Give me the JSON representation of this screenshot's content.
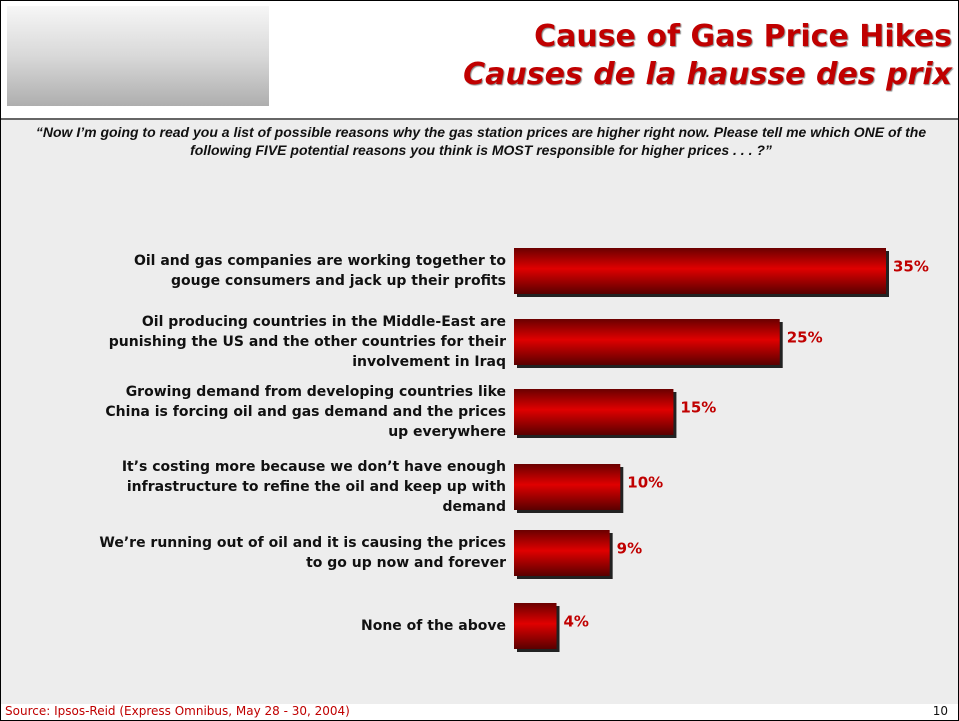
{
  "chart_data": {
    "type": "bar",
    "orientation": "horizontal",
    "title": "Cause of Gas Price Hikes",
    "subtitle": "Causes de la hausse des prix",
    "question": "“Now I’m going to read you a list of possible reasons why the gas station prices are higher right now. Please tell me which ONE of the following FIVE potential reasons you think is MOST responsible for higher prices . . . ?”",
    "categories": [
      "Oil and gas companies are working together to gouge consumers and jack up their profits",
      "Oil producing countries in the Middle-East are punishing the US and the other countries for their involvement in Iraq",
      "Growing demand from developing countries like China is forcing oil and gas demand and the prices up everywhere",
      "It’s costing more because we don’t have enough infrastructure to refine the oil and keep up with demand",
      "We’re running out of oil and it is causing the prices to go up now and forever",
      "None of the above"
    ],
    "values": [
      35,
      25,
      15,
      10,
      9,
      4
    ],
    "value_labels": [
      "35%",
      "25%",
      "15%",
      "10%",
      "9%",
      "4%"
    ],
    "color": "#c00000",
    "source": "Source: Ipsos-Reid (Express Omnibus, May 28 - 30, 2004)"
  },
  "page_number": "10"
}
